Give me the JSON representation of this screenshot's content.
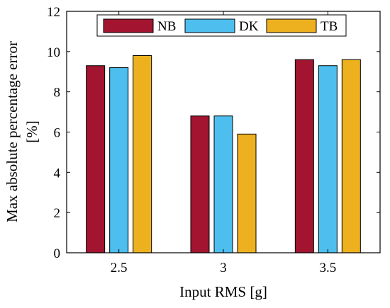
{
  "chart_data": {
    "type": "bar",
    "categories": [
      "2.5",
      "3",
      "3.5"
    ],
    "series": [
      {
        "name": "NB",
        "color": "#A2142F",
        "values": [
          9.3,
          6.8,
          9.6
        ]
      },
      {
        "name": "DK",
        "color": "#4DBEEE",
        "values": [
          9.2,
          6.8,
          9.3
        ]
      },
      {
        "name": "TB",
        "color": "#EDB120",
        "values": [
          9.8,
          5.9,
          9.6
        ]
      }
    ],
    "title": "",
    "xlabel": "Input RMS [g]",
    "ylabel": "Max absolute percentage error",
    "ylabel_line2": "[%]",
    "ylim": [
      0,
      12
    ],
    "yticks": [
      "0",
      "2",
      "4",
      "6",
      "8",
      "10",
      "12"
    ],
    "grid": false,
    "legend_position": "top"
  }
}
